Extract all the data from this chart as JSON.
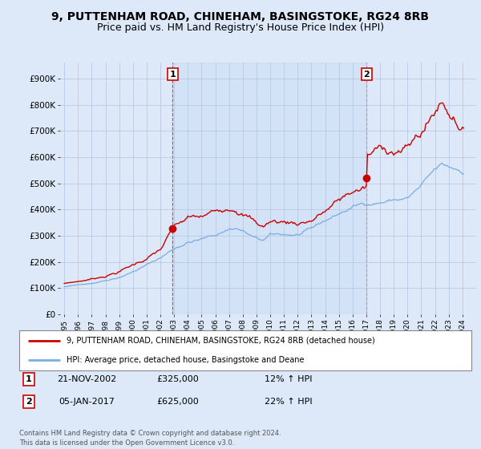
{
  "title": "9, PUTTENHAM ROAD, CHINEHAM, BASINGSTOKE, RG24 8RB",
  "subtitle": "Price paid vs. HM Land Registry's House Price Index (HPI)",
  "title_fontsize": 10,
  "subtitle_fontsize": 9,
  "ylabel_ticks": [
    "£0",
    "£100K",
    "£200K",
    "£300K",
    "£400K",
    "£500K",
    "£600K",
    "£700K",
    "£800K",
    "£900K"
  ],
  "ytick_values": [
    0,
    100000,
    200000,
    300000,
    400000,
    500000,
    600000,
    700000,
    800000,
    900000
  ],
  "ylim": [
    0,
    960000
  ],
  "xlim_start": 1994.7,
  "xlim_end": 2025.0,
  "xtick_years": [
    1995,
    1996,
    1997,
    1998,
    1999,
    2000,
    2001,
    2002,
    2003,
    2004,
    2005,
    2006,
    2007,
    2008,
    2009,
    2010,
    2011,
    2012,
    2013,
    2014,
    2015,
    2016,
    2017,
    2018,
    2019,
    2020,
    2021,
    2022,
    2023,
    2024
  ],
  "purchase1_date": 2002.9,
  "purchase1_price": 325000,
  "purchase1_label": "1",
  "purchase1_hpi_pct": "12% ↑ HPI",
  "purchase1_date_str": "21-NOV-2002",
  "purchase2_date": 2017.02,
  "purchase2_price": 625000,
  "purchase2_label": "2",
  "purchase2_hpi_pct": "22% ↑ HPI",
  "purchase2_date_str": "05-JAN-2017",
  "line_color_property": "#cc0000",
  "line_color_hpi": "#7aade0",
  "background_color": "#dde8f8",
  "plot_bg_color": "#dde8f8",
  "plot_fill_color": "#dde8f8",
  "grid_color": "#b0c4de",
  "legend_label_property": "9, PUTTENHAM ROAD, CHINEHAM, BASINGSTOKE, RG24 8RB (detached house)",
  "legend_label_hpi": "HPI: Average price, detached house, Basingstoke and Deane",
  "footer_text": "Contains HM Land Registry data © Crown copyright and database right 2024.\nThis data is licensed under the Open Government Licence v3.0.",
  "annotation_box_color": "#cc0000",
  "dot_color": "#cc0000"
}
